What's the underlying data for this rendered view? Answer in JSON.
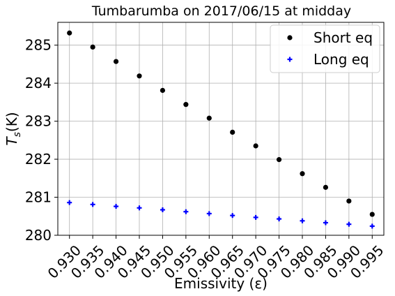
{
  "chart_data": {
    "type": "scatter",
    "title": "Tumbarumba on 2017/06/15 at midday",
    "xlabel": "Emissivity",
    "xlabel_symbol": "(ε)",
    "ylabel": "T",
    "ylabel_subscript": "s",
    "ylabel_unit": "(K)",
    "x": [
      0.93,
      0.935,
      0.94,
      0.945,
      0.95,
      0.955,
      0.96,
      0.965,
      0.97,
      0.975,
      0.98,
      0.985,
      0.99,
      0.995
    ],
    "x_tick_labels": [
      "0.930",
      "0.935",
      "0.940",
      "0.945",
      "0.950",
      "0.955",
      "0.960",
      "0.965",
      "0.970",
      "0.975",
      "0.980",
      "0.985",
      "0.990",
      "0.995"
    ],
    "y_tick_labels": [
      "280",
      "281",
      "282",
      "283",
      "284",
      "285"
    ],
    "y_ticks": [
      280,
      281,
      282,
      283,
      284,
      285
    ],
    "xlim": [
      0.9275,
      0.9975
    ],
    "ylim": [
      280.0,
      285.6
    ],
    "grid": true,
    "legend_position": "top-right",
    "series": [
      {
        "name": "Short eq",
        "color": "#000000",
        "marker": "circle",
        "values": [
          285.32,
          284.95,
          284.57,
          284.19,
          283.81,
          283.44,
          283.08,
          282.71,
          282.35,
          281.99,
          281.62,
          281.26,
          280.9,
          280.55
        ]
      },
      {
        "name": "Long eq",
        "color": "#0000ff",
        "marker": "plus",
        "values": [
          280.86,
          280.81,
          280.76,
          280.72,
          280.67,
          280.62,
          280.57,
          280.52,
          280.47,
          280.43,
          280.38,
          280.33,
          280.29,
          280.24
        ]
      }
    ]
  }
}
